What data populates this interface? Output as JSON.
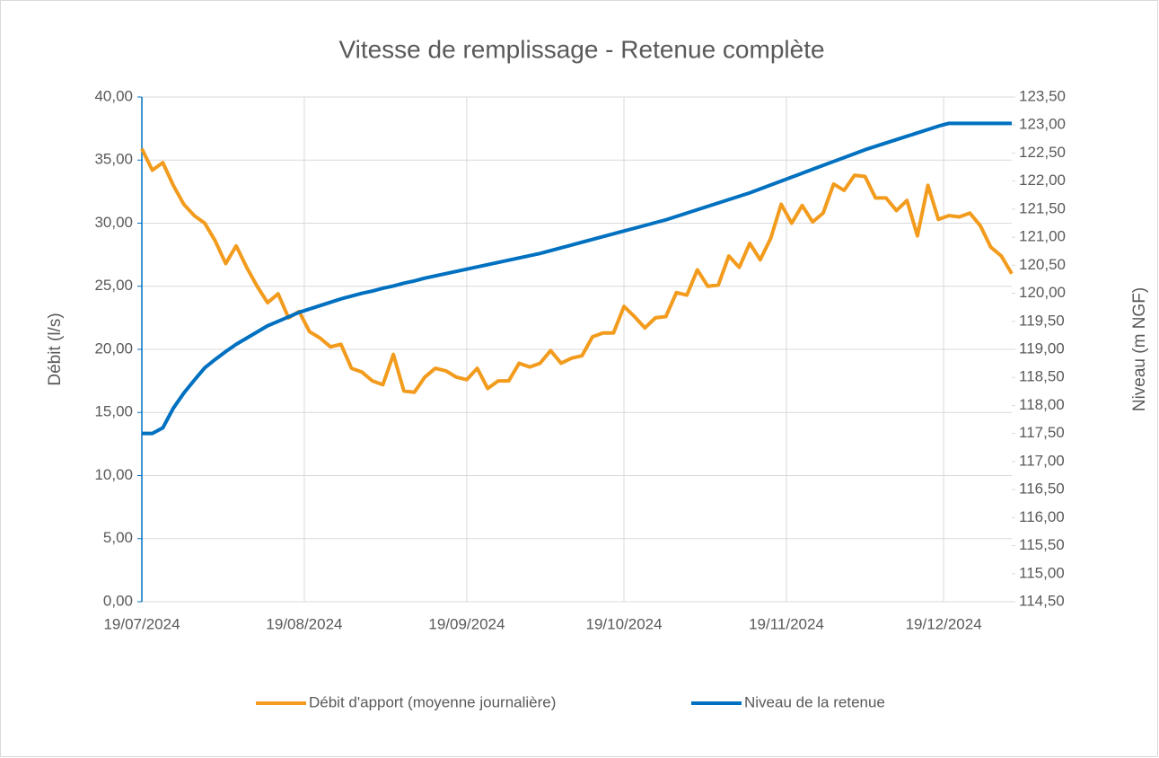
{
  "chart_data": {
    "type": "line",
    "title": "Vitesse de remplissage - Retenue complète",
    "y_label": "Débit (l/s)",
    "y2_label": "Niveau (m NGF)",
    "x": [
      "19/07/2024",
      "21/07/2024",
      "23/07/2024",
      "25/07/2024",
      "27/07/2024",
      "29/07/2024",
      "31/07/2024",
      "02/08/2024",
      "04/08/2024",
      "06/08/2024",
      "08/08/2024",
      "10/08/2024",
      "12/08/2024",
      "14/08/2024",
      "16/08/2024",
      "18/08/2024",
      "20/08/2024",
      "22/08/2024",
      "24/08/2024",
      "26/08/2024",
      "28/08/2024",
      "30/08/2024",
      "01/09/2024",
      "03/09/2024",
      "05/09/2024",
      "07/09/2024",
      "09/09/2024",
      "11/09/2024",
      "13/09/2024",
      "15/09/2024",
      "17/09/2024",
      "19/09/2024",
      "21/09/2024",
      "23/09/2024",
      "25/09/2024",
      "27/09/2024",
      "29/09/2024",
      "01/10/2024",
      "03/10/2024",
      "05/10/2024",
      "07/10/2024",
      "09/10/2024",
      "11/10/2024",
      "13/10/2024",
      "15/10/2024",
      "17/10/2024",
      "19/10/2024",
      "21/10/2024",
      "23/10/2024",
      "25/10/2024",
      "27/10/2024",
      "29/10/2024",
      "31/10/2024",
      "02/11/2024",
      "04/11/2024",
      "06/11/2024",
      "08/11/2024",
      "10/11/2024",
      "12/11/2024",
      "14/11/2024",
      "16/11/2024",
      "18/11/2024",
      "20/11/2024",
      "22/11/2024",
      "24/11/2024",
      "26/11/2024",
      "28/11/2024",
      "30/11/2024",
      "02/12/2024",
      "04/12/2024",
      "06/12/2024",
      "08/12/2024",
      "10/12/2024",
      "12/12/2024",
      "14/12/2024",
      "16/12/2024",
      "18/12/2024",
      "20/12/2024",
      "22/12/2024",
      "24/12/2024",
      "26/12/2024",
      "28/12/2024",
      "30/12/2024",
      "01/01/2025"
    ],
    "series": [
      {
        "name": "Débit d'apport (moyenne journalière)",
        "color": "#f29b1d",
        "values": [
          35.9,
          34.2,
          34.8,
          33.0,
          31.5,
          30.6,
          30.0,
          28.6,
          26.8,
          28.2,
          26.5,
          25.0,
          23.7,
          24.4,
          22.5,
          23.0,
          21.4,
          20.9,
          20.2,
          20.4,
          18.5,
          18.2,
          17.5,
          17.2,
          19.6,
          16.7,
          16.6,
          17.8,
          18.5,
          18.3,
          17.8,
          17.6,
          18.5,
          16.9,
          17.5,
          17.5,
          18.9,
          18.6,
          18.9,
          19.9,
          18.9,
          19.3,
          19.5,
          21.0,
          21.3,
          21.3,
          23.4,
          22.6,
          21.7,
          22.5,
          22.6,
          24.5,
          24.3,
          26.3,
          25.0,
          25.1,
          27.4,
          26.5,
          28.4,
          27.1,
          28.8,
          31.5,
          30.0,
          31.4,
          30.1,
          30.8,
          33.1,
          32.6,
          33.8,
          33.7,
          32.0,
          32.0,
          31.0,
          31.8,
          29.0,
          33.0,
          30.3,
          30.6,
          30.5,
          30.8,
          29.8,
          28.1,
          27.4,
          26.0
        ]
      },
      {
        "name": "Niveau de la retenue",
        "color": "#0070c0",
        "axis": "y2",
        "values": [
          117.5,
          117.5,
          117.6,
          117.95,
          118.22,
          118.45,
          118.67,
          118.82,
          118.96,
          119.09,
          119.2,
          119.31,
          119.42,
          119.5,
          119.58,
          119.66,
          119.72,
          119.78,
          119.84,
          119.9,
          119.95,
          120.0,
          120.04,
          120.09,
          120.13,
          120.18,
          120.22,
          120.27,
          120.31,
          120.35,
          120.39,
          120.43,
          120.47,
          120.51,
          120.55,
          120.59,
          120.63,
          120.67,
          120.71,
          120.76,
          120.81,
          120.86,
          120.91,
          120.96,
          121.01,
          121.06,
          121.11,
          121.16,
          121.21,
          121.26,
          121.31,
          121.37,
          121.43,
          121.49,
          121.55,
          121.61,
          121.67,
          121.73,
          121.79,
          121.86,
          121.93,
          122.0,
          122.07,
          122.14,
          122.21,
          122.28,
          122.35,
          122.42,
          122.49,
          122.56,
          122.62,
          122.68,
          122.74,
          122.8,
          122.86,
          122.92,
          122.98,
          123.03,
          123.03,
          123.03,
          123.03,
          123.03,
          123.03,
          123.03
        ]
      }
    ],
    "xlim": [
      "19/07/2024",
      "01/01/2025"
    ],
    "xticks": [
      "19/07/2024",
      "19/08/2024",
      "19/09/2024",
      "19/10/2024",
      "19/11/2024",
      "19/12/2024"
    ],
    "ylim": [
      0,
      40
    ],
    "yticks": [
      {
        "value": 0,
        "label": "0,00"
      },
      {
        "value": 5,
        "label": "5,00"
      },
      {
        "value": 10,
        "label": "10,00"
      },
      {
        "value": 15,
        "label": "15,00"
      },
      {
        "value": 20,
        "label": "20,00"
      },
      {
        "value": 25,
        "label": "25,00"
      },
      {
        "value": 30,
        "label": "30,00"
      },
      {
        "value": 35,
        "label": "35,00"
      },
      {
        "value": 40,
        "label": "40,00"
      }
    ],
    "y2lim": [
      114.5,
      123.5
    ],
    "y2ticks": [
      {
        "value": 114.5,
        "label": "114,50"
      },
      {
        "value": 115,
        "label": "115,00"
      },
      {
        "value": 115.5,
        "label": "115,50"
      },
      {
        "value": 116,
        "label": "116,00"
      },
      {
        "value": 116.5,
        "label": "116,50"
      },
      {
        "value": 117,
        "label": "117,00"
      },
      {
        "value": 117.5,
        "label": "117,50"
      },
      {
        "value": 118,
        "label": "118,00"
      },
      {
        "value": 118.5,
        "label": "118,50"
      },
      {
        "value": 119,
        "label": "119,00"
      },
      {
        "value": 119.5,
        "label": "119,50"
      },
      {
        "value": 120,
        "label": "120,00"
      },
      {
        "value": 120.5,
        "label": "120,50"
      },
      {
        "value": 121,
        "label": "121,00"
      },
      {
        "value": 121.5,
        "label": "121,50"
      },
      {
        "value": 122,
        "label": "122,00"
      },
      {
        "value": 122.5,
        "label": "122,50"
      },
      {
        "value": 123,
        "label": "123,00"
      },
      {
        "value": 123.5,
        "label": "123,50"
      }
    ],
    "grid": true,
    "legend": "bottom"
  }
}
